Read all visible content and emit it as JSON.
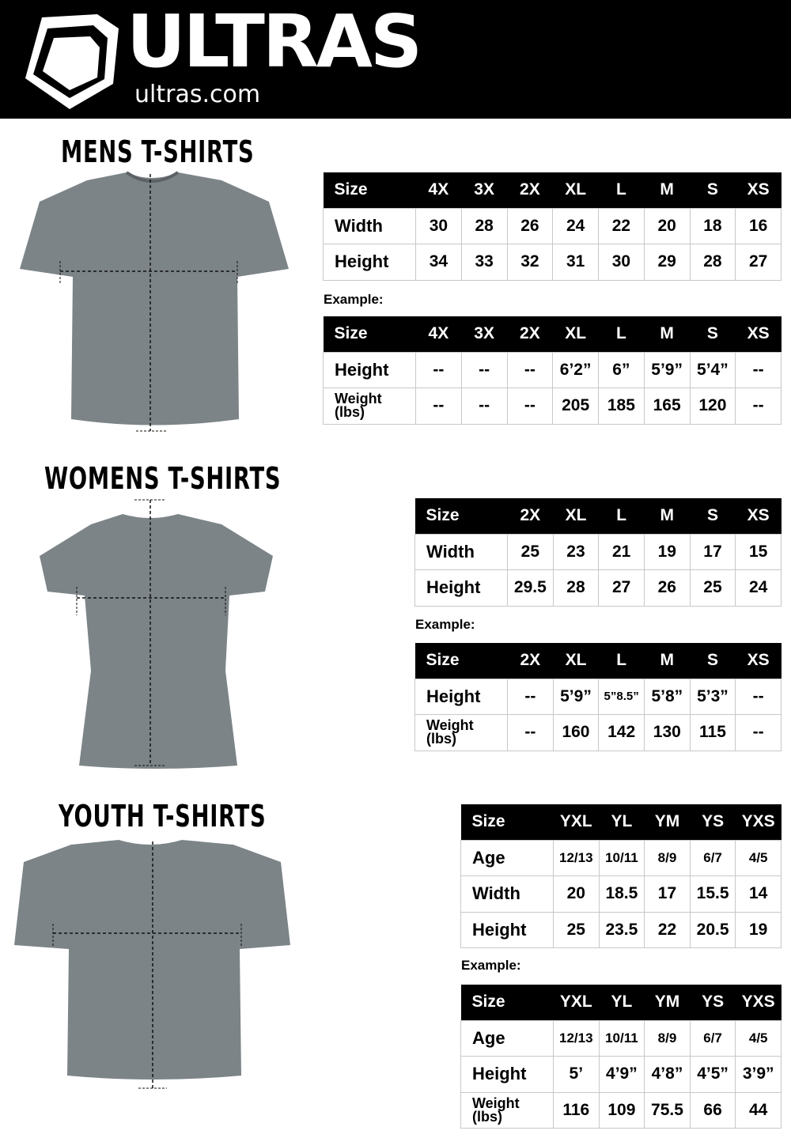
{
  "header": {
    "brand": "ULTRAS",
    "site": "ultras.com"
  },
  "sections": [
    {
      "title": "MENS T-SHIRTS",
      "example_label": "Example:",
      "measure": {
        "header": [
          "Size",
          "4X",
          "3X",
          "2X",
          "XL",
          "L",
          "M",
          "S",
          "XS"
        ],
        "rows": [
          [
            "Width",
            "30",
            "28",
            "26",
            "24",
            "22",
            "20",
            "18",
            "16"
          ],
          [
            "Height",
            "34",
            "33",
            "32",
            "31",
            "30",
            "29",
            "28",
            "27"
          ]
        ]
      },
      "example": {
        "header": [
          "Size",
          "4X",
          "3X",
          "2X",
          "XL",
          "L",
          "M",
          "S",
          "XS"
        ],
        "rows": [
          [
            "Height",
            "--",
            "--",
            "--",
            "6’2”",
            "6”",
            "5’9”",
            "5’4”",
            "--"
          ],
          [
            "Weight (lbs)",
            "--",
            "--",
            "--",
            "205",
            "185",
            "165",
            "120",
            "--"
          ]
        ]
      }
    },
    {
      "title": "WOMENS T-SHIRTS",
      "example_label": "Example:",
      "measure": {
        "header": [
          "Size",
          "2X",
          "XL",
          "L",
          "M",
          "S",
          "XS"
        ],
        "rows": [
          [
            "Width",
            "25",
            "23",
            "21",
            "19",
            "17",
            "15"
          ],
          [
            "Height",
            "29.5",
            "28",
            "27",
            "26",
            "25",
            "24"
          ]
        ]
      },
      "example": {
        "header": [
          "Size",
          "2X",
          "XL",
          "L",
          "M",
          "S",
          "XS"
        ],
        "rows": [
          [
            "Height",
            "--",
            "5’9”",
            "5”8.5”",
            "5’8”",
            "5’3”",
            "--"
          ],
          [
            "Weight (lbs)",
            "--",
            "160",
            "142",
            "130",
            "115",
            "--"
          ]
        ]
      }
    },
    {
      "title": "YOUTH T-SHIRTS",
      "example_label": "Example:",
      "measure": {
        "header": [
          "Size",
          "YXL",
          "YL",
          "YM",
          "YS",
          "YXS"
        ],
        "rows": [
          [
            "Age",
            "12/13",
            "10/11",
            "8/9",
            "6/7",
            "4/5"
          ],
          [
            "Width",
            "20",
            "18.5",
            "17",
            "15.5",
            "14"
          ],
          [
            "Height",
            "25",
            "23.5",
            "22",
            "20.5",
            "19"
          ]
        ]
      },
      "example": {
        "header": [
          "Size",
          "YXL",
          "YL",
          "YM",
          "YS",
          "YXS"
        ],
        "rows": [
          [
            "Age",
            "12/13",
            "10/11",
            "8/9",
            "6/7",
            "4/5"
          ],
          [
            "Height",
            "5’",
            "4’9”",
            "4’8”",
            "4’5”",
            "3’9”"
          ],
          [
            "Weight (lbs)",
            "116",
            "109",
            "75.5",
            "66",
            "44"
          ]
        ]
      }
    }
  ],
  "colors": {
    "header_bg": "#000000",
    "shirt": "#7c8488",
    "grid": "#c8c8c8"
  }
}
